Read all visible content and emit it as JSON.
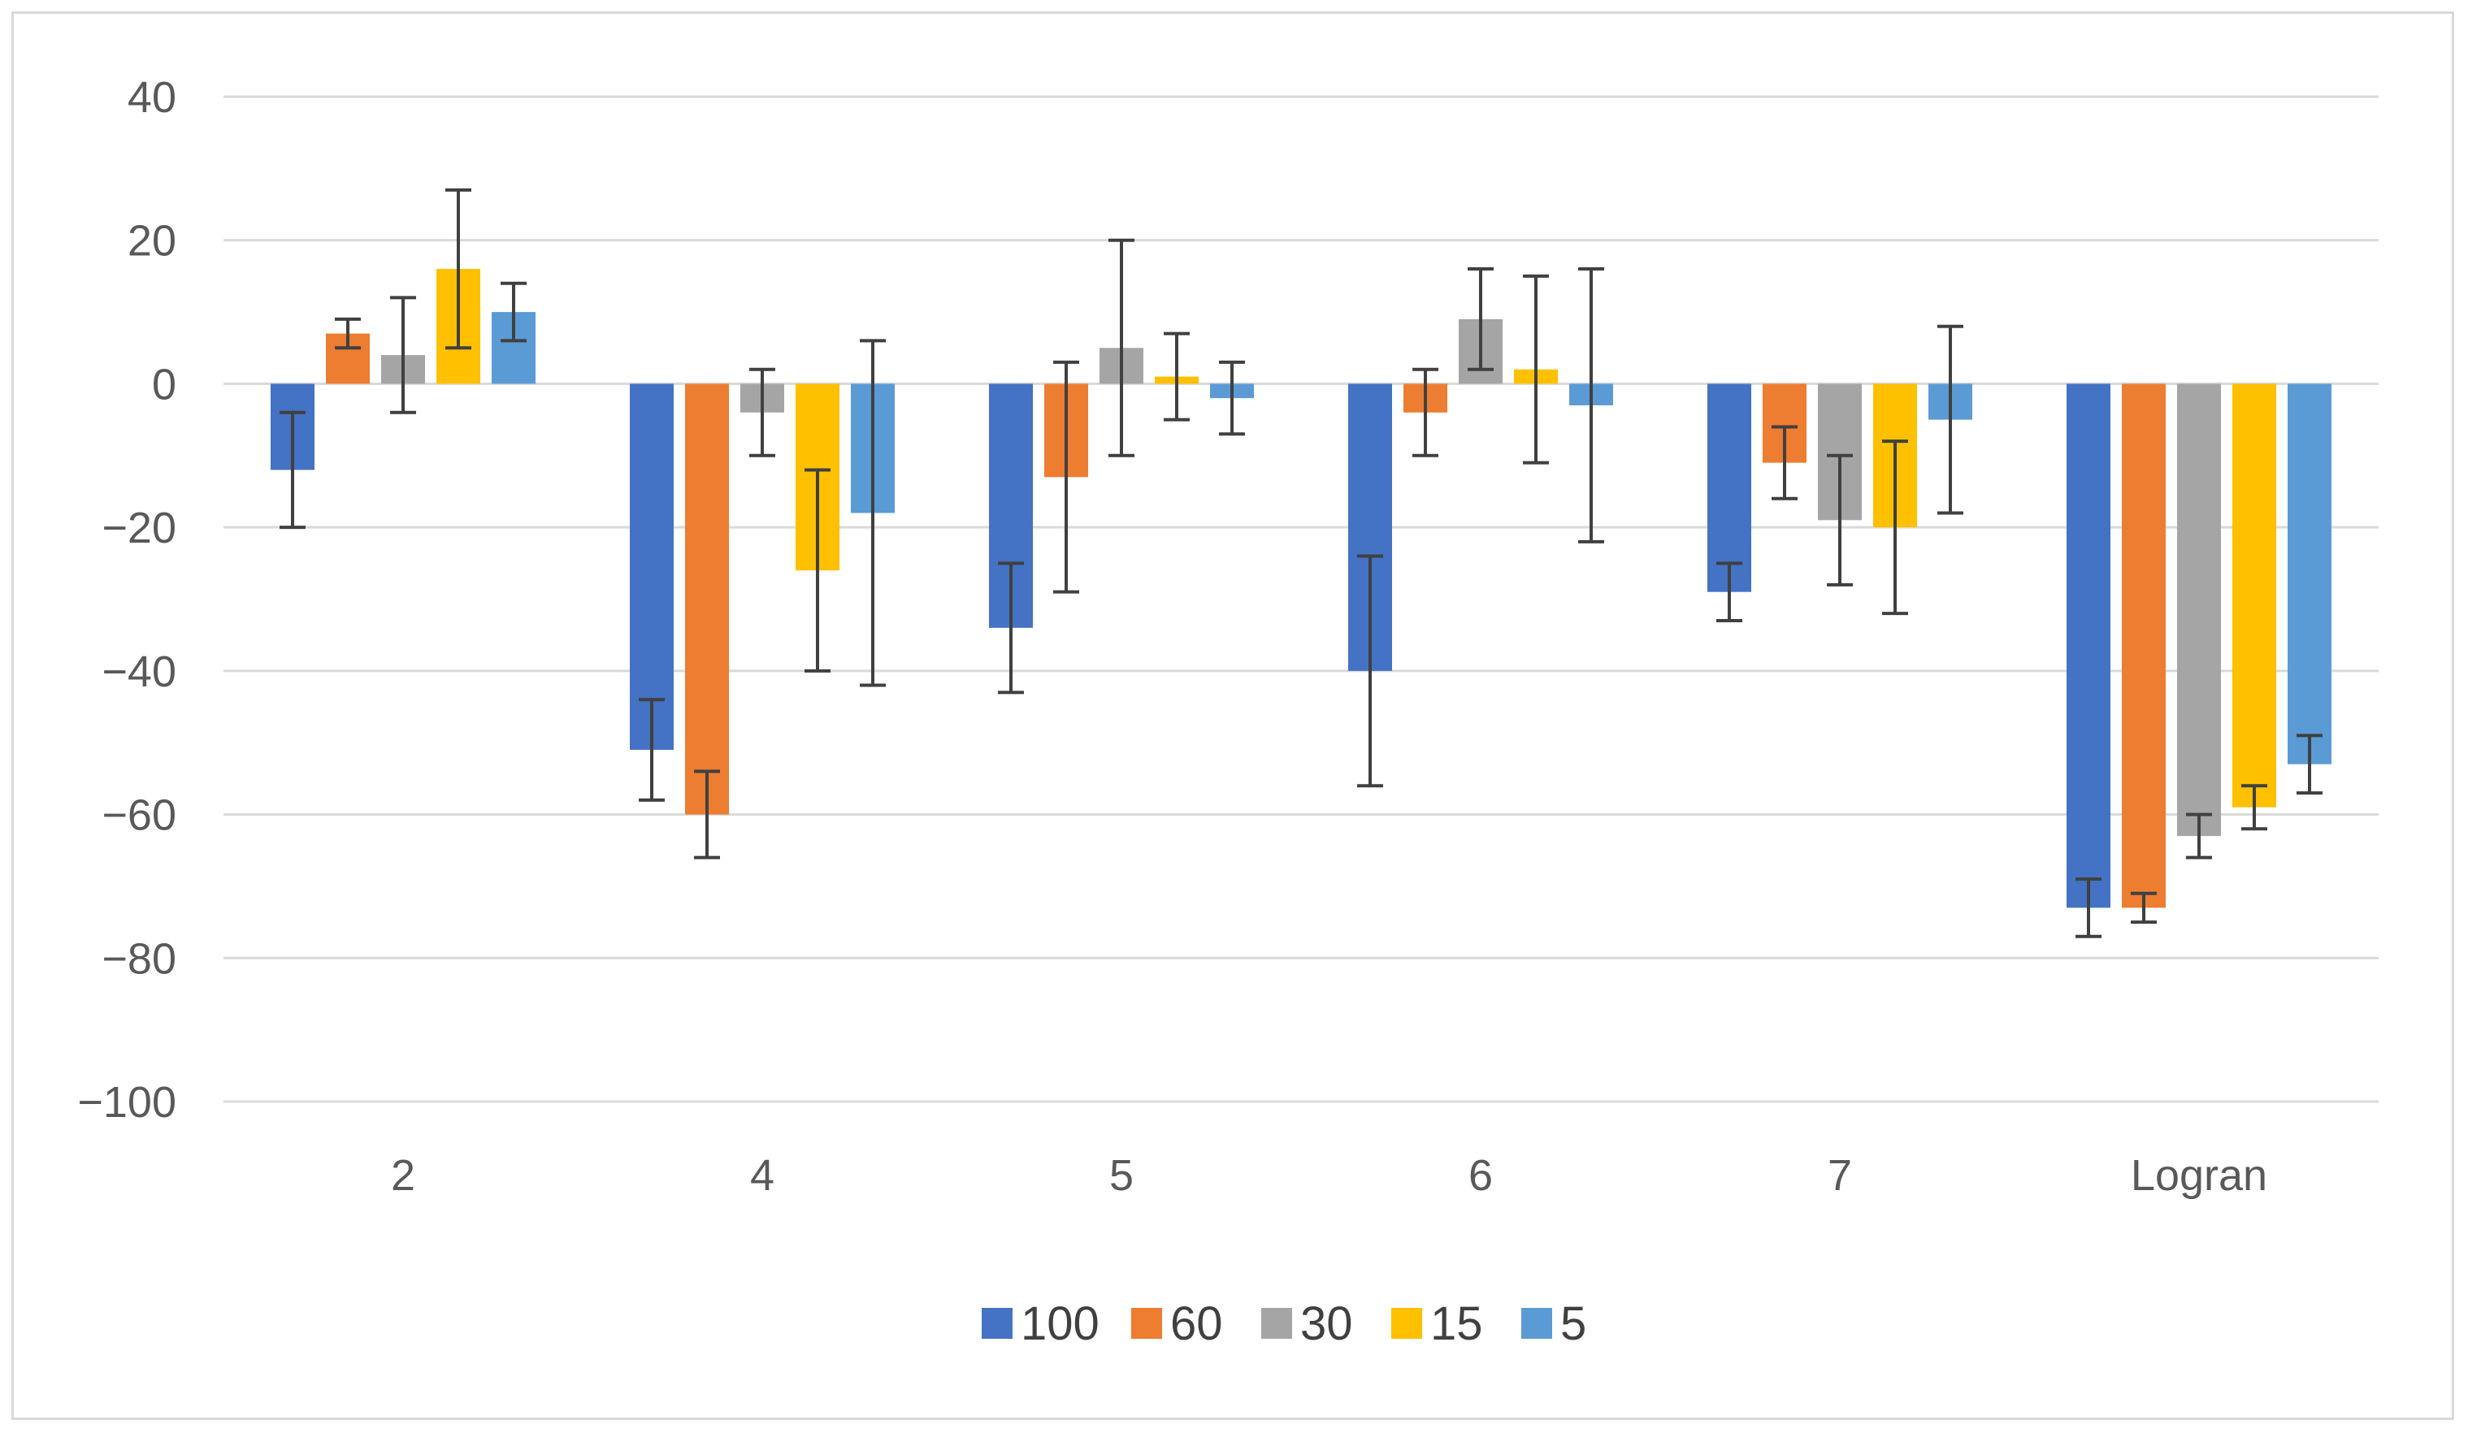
{
  "chart_data": {
    "type": "bar",
    "title": "",
    "xlabel": "",
    "ylabel": "",
    "ylim": [
      -100,
      40
    ],
    "yticks": [
      40,
      20,
      0,
      -20,
      -40,
      -60,
      -80,
      -100
    ],
    "ytick_labels": [
      "40",
      "20",
      "0",
      "−20",
      "−40",
      "−60",
      "−80",
      "−100"
    ],
    "grid": true,
    "legend_position": "bottom",
    "categories": [
      "2",
      "4",
      "5",
      "6",
      "7",
      "Logran"
    ],
    "series": [
      {
        "name": "100",
        "color": "#4472C4",
        "values": [
          -12,
          -51,
          -34,
          -40,
          -29,
          -73
        ],
        "errors": [
          8,
          7,
          9,
          16,
          4,
          4
        ]
      },
      {
        "name": "60",
        "color": "#ED7D31",
        "values": [
          7,
          -60,
          -13,
          -4,
          -11,
          -73
        ],
        "errors": [
          2,
          6,
          16,
          6,
          5,
          2
        ]
      },
      {
        "name": "30",
        "color": "#A5A5A5",
        "values": [
          4,
          -4,
          5,
          9,
          -19,
          -63
        ],
        "errors": [
          8,
          6,
          15,
          7,
          9,
          3
        ]
      },
      {
        "name": "15",
        "color": "#FFC000",
        "values": [
          16,
          -26,
          1,
          2,
          -20,
          -59
        ],
        "errors": [
          11,
          14,
          6,
          13,
          12,
          3
        ]
      },
      {
        "name": "5",
        "color": "#5B9BD5",
        "values": [
          10,
          -18,
          -2,
          -3,
          -5,
          -53
        ],
        "errors": [
          4,
          24,
          5,
          19,
          13,
          4
        ]
      }
    ]
  }
}
